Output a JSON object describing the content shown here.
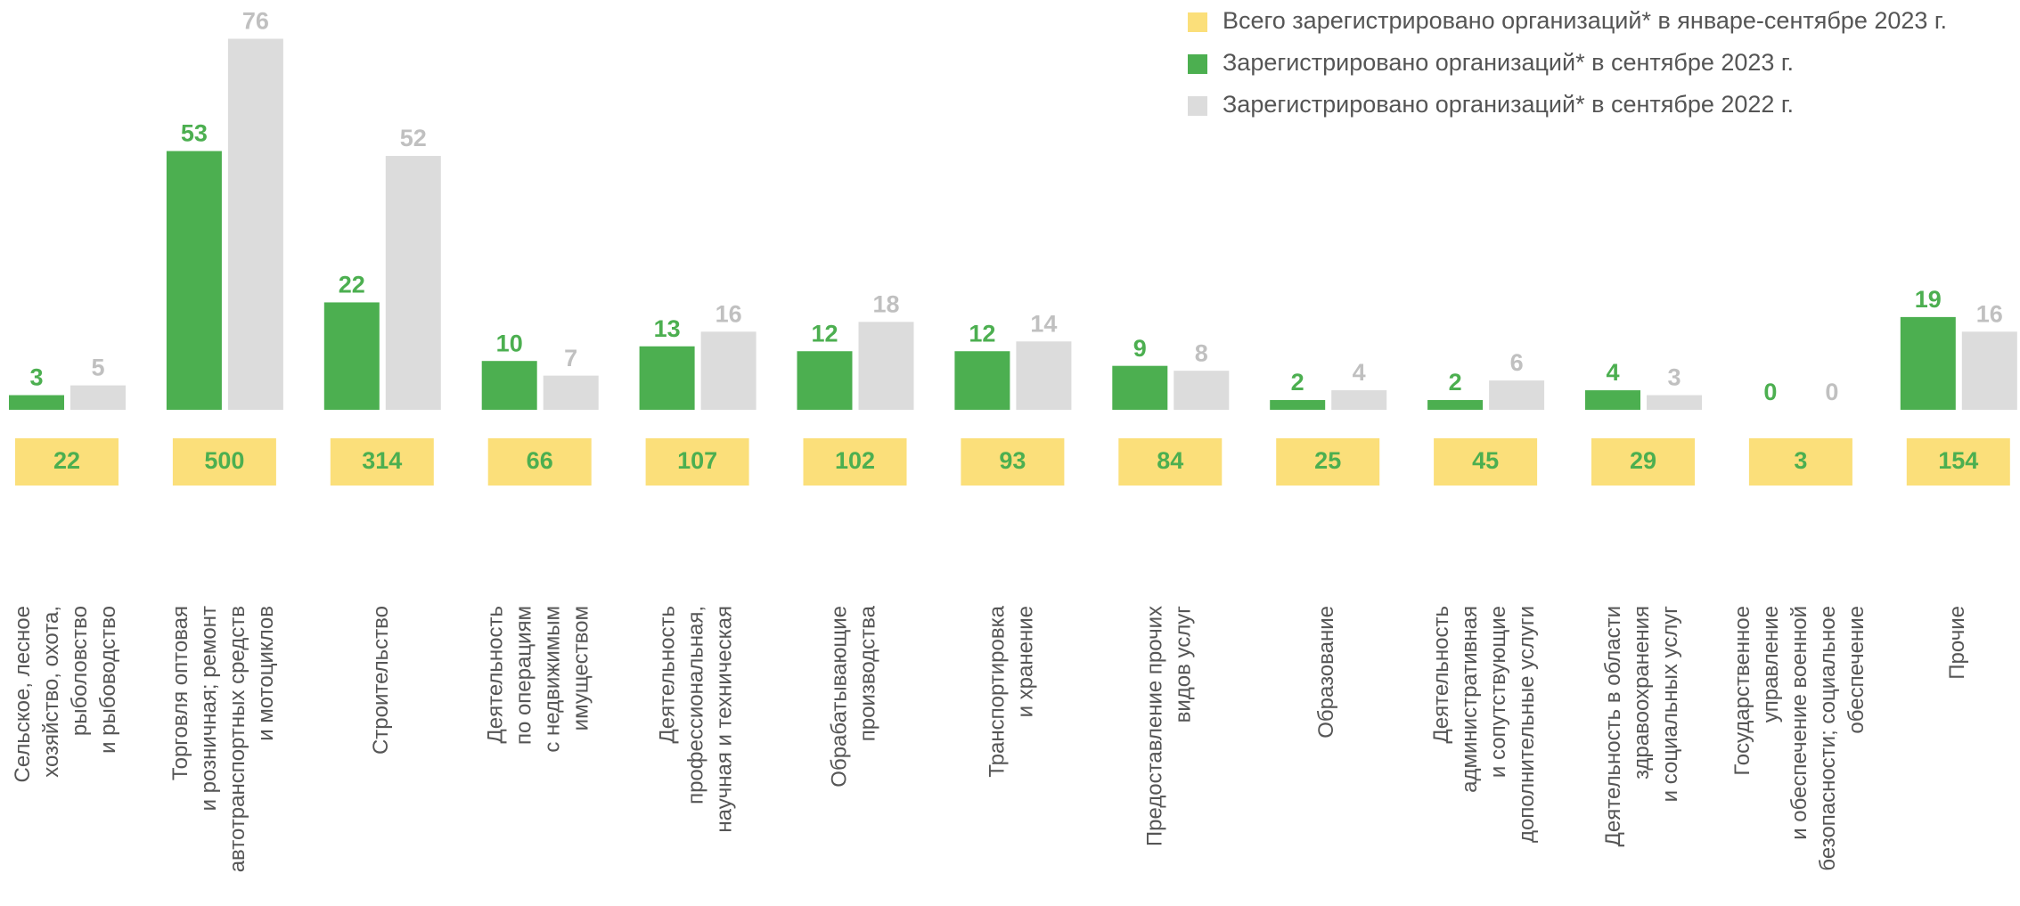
{
  "chart_data": {
    "type": "bar",
    "categories": [
      "Сельское, лесное\nхозяйство, охота,\nрыболовство\nи рыбоводство",
      "Торговля оптовая\nи розничная; ремонт\nавтотранспортных средств\nи мотоциклов",
      "Строительство",
      "Деятельность\nпо операциям\nс недвижимым\nимуществом",
      "Деятельность\nпрофессиональная,\nнаучная и техническая",
      "Обрабатывающие\nпроизводства",
      "Транспортировка\nи хранение",
      "Предоставление прочих\nвидов услуг",
      "Образование",
      "Деятельность\nадминистративная\nи сопутствующие\nдополнительные услуги",
      "Деятельность в области\nздравоохранения\nи социальных услуг",
      "Государственное\nуправление\nи обеспечение военной\nбезопасности; социальное\nобеспечение",
      "Прочие"
    ],
    "totals": {
      "name": "Всего зарегистрировано организаций* в январе-сентябре 2023 г.",
      "color": "#fbdf7a",
      "values": [
        22,
        500,
        314,
        66,
        107,
        102,
        93,
        84,
        25,
        45,
        29,
        3,
        154
      ]
    },
    "series": [
      {
        "name": "Зарегистрировано организаций* в сентябре 2023 г.",
        "color": "#4caf50",
        "values": [
          3,
          53,
          22,
          10,
          13,
          12,
          12,
          9,
          2,
          2,
          4,
          0,
          19
        ]
      },
      {
        "name": "Зарегистрировано организаций* в сентябре 2022 г.",
        "color": "#dcdcdc",
        "values": [
          5,
          76,
          52,
          7,
          16,
          18,
          14,
          8,
          4,
          6,
          3,
          0,
          16
        ]
      }
    ],
    "legend": "top-right"
  }
}
